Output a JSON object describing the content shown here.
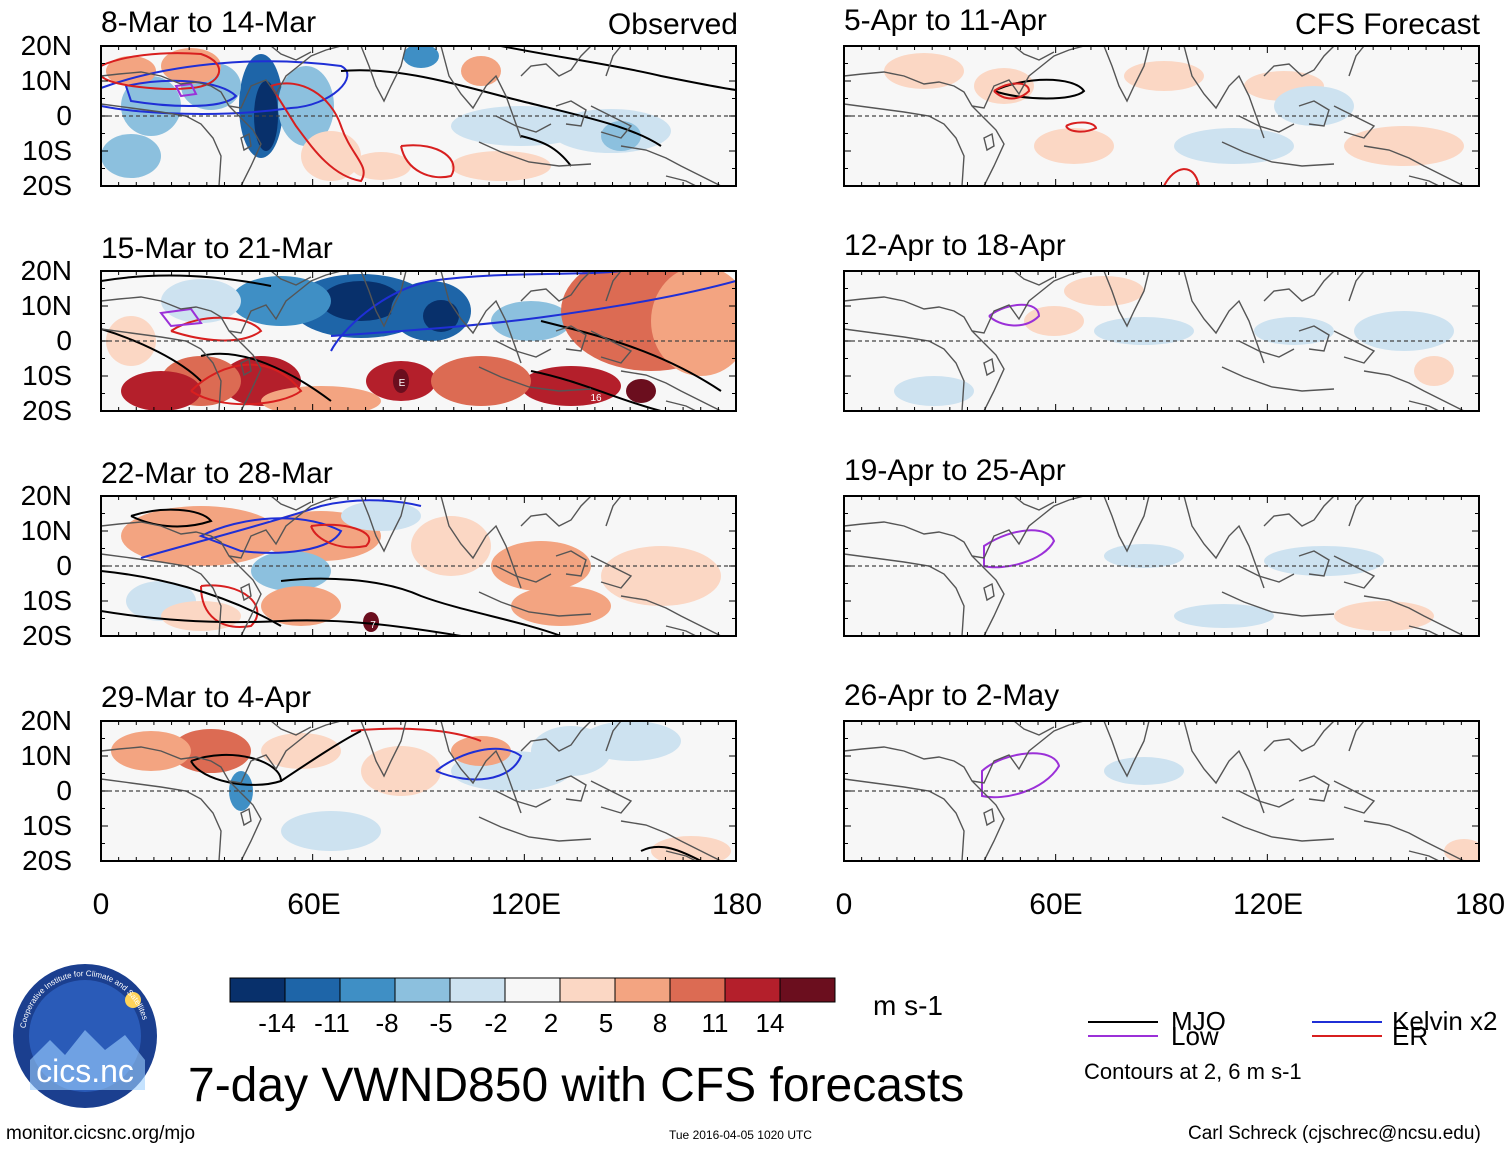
{
  "header": {
    "observed_label": "Observed",
    "forecast_label": "CFS Forecast"
  },
  "panels": {
    "observed": [
      {
        "title": "8-Mar to 14-Mar"
      },
      {
        "title": "15-Mar to 21-Mar"
      },
      {
        "title": "22-Mar to 28-Mar"
      },
      {
        "title": "29-Mar to 4-Apr"
      }
    ],
    "forecast": [
      {
        "title": "5-Apr to 11-Apr"
      },
      {
        "title": "12-Apr to 18-Apr"
      },
      {
        "title": "19-Apr to 25-Apr"
      },
      {
        "title": "26-Apr to 2-May"
      }
    ]
  },
  "axes": {
    "lat_labels": [
      "20N",
      "10N",
      "0",
      "10S",
      "20S"
    ],
    "lon_labels": [
      "0",
      "60E",
      "120E",
      "180"
    ]
  },
  "storm_labels": [
    "E",
    "16",
    "7"
  ],
  "colorbar": {
    "colors": [
      "#08306b",
      "#1e65a8",
      "#3f8fc5",
      "#8cc0de",
      "#cde2f0",
      "#f7f7f7",
      "#fbd7c4",
      "#f3a481",
      "#dc6b53",
      "#b41f2b",
      "#6b0e1e"
    ],
    "ticks": [
      "-14",
      "-11",
      "-8",
      "-5",
      "-2",
      "2",
      "5",
      "8",
      "11",
      "14"
    ],
    "units": "m s-1"
  },
  "legend": {
    "items": [
      {
        "label": "MJO",
        "color": "#000000"
      },
      {
        "label": "Kelvin x2",
        "color": "#1f2fd6"
      },
      {
        "label": "Low",
        "color": "#9b30d8"
      },
      {
        "label": "ER",
        "color": "#d81f1f"
      }
    ],
    "note": "Contours at 2, 6 m s-1"
  },
  "logo": {
    "text": "cics.nc",
    "ring_text": "Cooperative Institute for Climate and Satellites"
  },
  "title": "7-day VWND850 with CFS forecasts",
  "footer": {
    "url": "monitor.cicsnc.org/mjo",
    "timestamp": "Tue 2016-04-05 1020 UTC",
    "author": "Carl Schreck (cjschrec@ncsu.edu)"
  }
}
